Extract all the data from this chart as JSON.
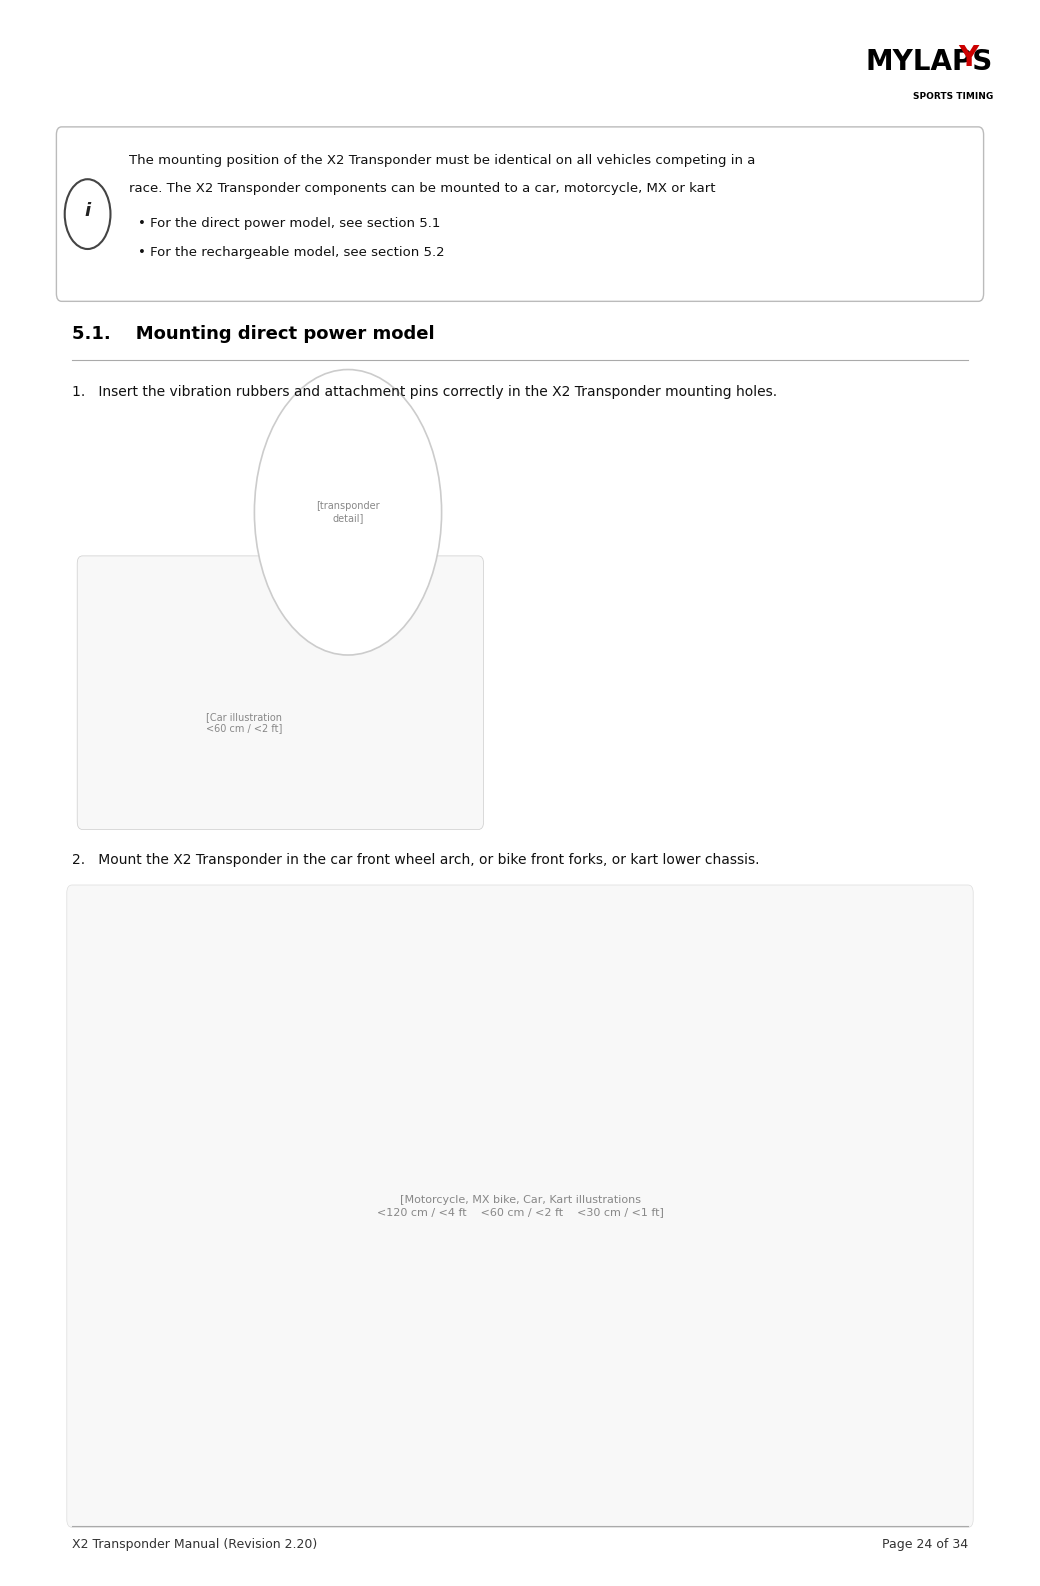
{
  "page_width": 10.4,
  "page_height": 15.86,
  "dpi": 100,
  "bg_color": "#ffffff",
  "header_logo_text": "MYLAPS",
  "header_logo_subtext": "SPORTS TIMING",
  "footer_left": "X2 Transponder Manual (Revision 2.20)",
  "footer_right": "Page 24 of 34",
  "footer_fontsize": 9,
  "info_icon_symbol": "i",
  "info_text_line1": "The mounting position of the X2 Transponder must be identical on all vehicles competing in a",
  "info_text_line2": "race. The X2 Transponder components can be mounted to a car, motorcycle, MX or kart",
  "info_bullet1": "For the direct power model, see section 5.1",
  "info_bullet2": "For the rechargeable model, see section 5.2",
  "section_heading": "5.1.    Mounting direct power model",
  "section_heading_fontsize": 13,
  "body_fontsize": 10,
  "info_fontsize": 10,
  "section_color": "#000000",
  "footer_line_color": "#aaaaaa",
  "logo_red": "#cc0000",
  "logo_black": "#000000"
}
